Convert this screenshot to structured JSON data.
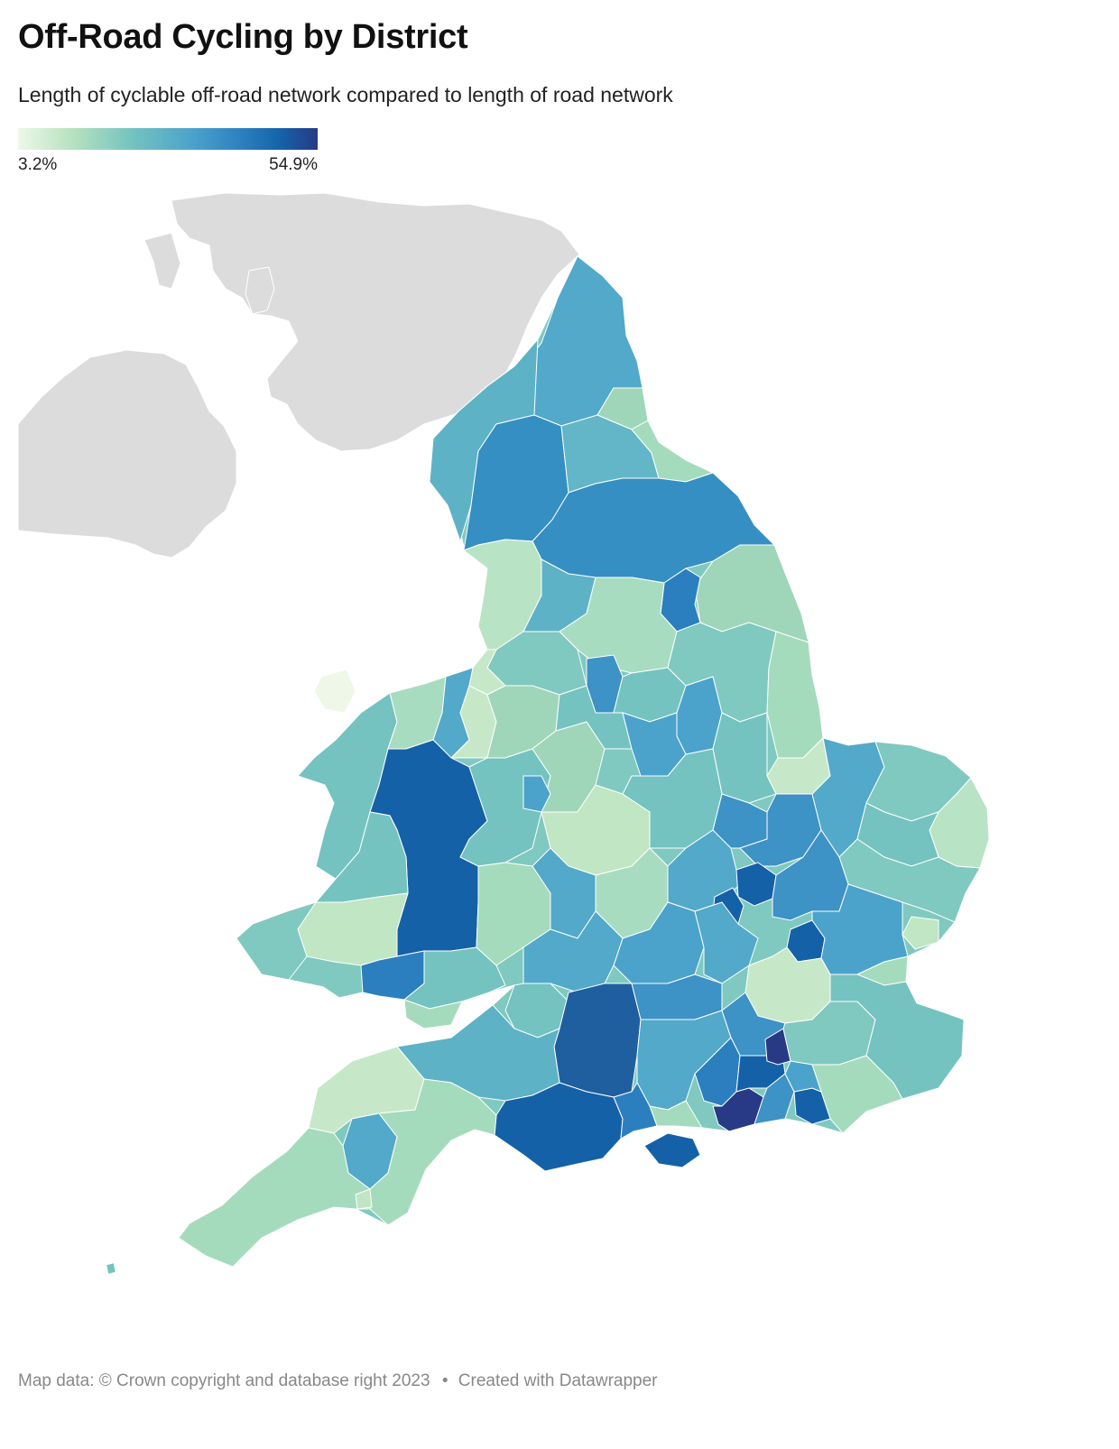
{
  "header": {
    "title": "Off-Road Cycling by District",
    "subtitle": "Length of cyclable off-road network compared to length of road network"
  },
  "legend": {
    "min_label": "3.2%",
    "max_label": "54.9%",
    "min_value": 3.2,
    "max_value": 54.9,
    "colors": [
      "#edf8e9",
      "#a1d99b",
      "#74c3c0",
      "#4ba3cc",
      "#2b7fbf",
      "#1561a8",
      "#283a85"
    ]
  },
  "footer": {
    "map_credit": "Map data: © Crown copyright and database right 2023",
    "separator": "•",
    "created_with": "Created with Datawrapper"
  },
  "colors": {
    "background_land": "#dcdcdc",
    "border": "#ffffff"
  }
}
